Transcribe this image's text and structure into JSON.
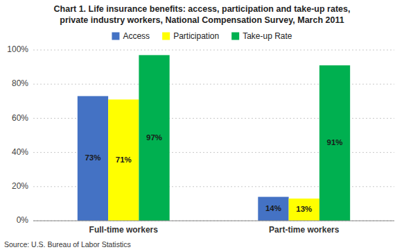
{
  "chart_data": {
    "type": "bar",
    "title": "Chart 1. Life insurance benefits: access, participation and take-up rates,",
    "subtitle": "private industry workers, National Compensation Survey, March 2011",
    "categories": [
      "Full-time workers",
      "Part-time workers"
    ],
    "series": [
      {
        "name": "Access",
        "color": "#4472C4",
        "values": [
          73,
          14
        ],
        "value_labels": [
          "73%",
          "14%"
        ]
      },
      {
        "name": "Participation",
        "color": "#FFFF00",
        "values": [
          71,
          13
        ],
        "value_labels": [
          "71%",
          "13%"
        ]
      },
      {
        "name": "Take-up Rate",
        "color": "#00B050",
        "values": [
          97,
          91
        ],
        "value_labels": [
          "97%",
          "91%"
        ]
      }
    ],
    "ylim": [
      0,
      100
    ],
    "yticks": [
      {
        "value": 0,
        "label": "0%"
      },
      {
        "value": 20,
        "label": "20%"
      },
      {
        "value": 40,
        "label": "40%"
      },
      {
        "value": 60,
        "label": "60%"
      },
      {
        "value": 80,
        "label": "80%"
      },
      {
        "value": 100,
        "label": "100%"
      }
    ],
    "grid": true,
    "legend": "top",
    "data_labels": true,
    "annotations": [
      "Source: U.S. Bureau of Labor Statistics"
    ]
  }
}
